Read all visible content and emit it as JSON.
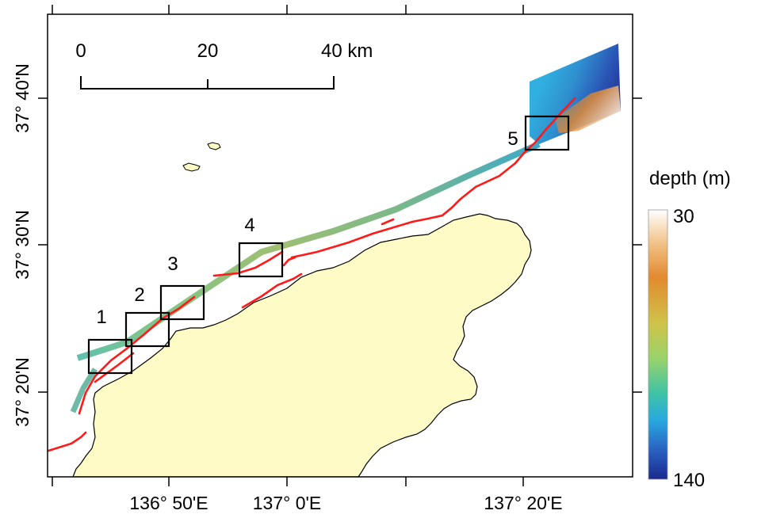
{
  "map": {
    "lat_labels": [
      {
        "text": "37° 40'N",
        "y": 40
      },
      {
        "text": "37° 30'N",
        "y": 30
      },
      {
        "text": "37° 20'N",
        "y": 20
      }
    ],
    "lon_labels": [
      {
        "text": "136° 50'E",
        "x": 50
      },
      {
        "text": "137° 0'E",
        "x": 0
      },
      {
        "text": "137° 20'E",
        "x": 20
      }
    ]
  },
  "scale_bar": {
    "ticks": [
      "0",
      "20",
      "40 km"
    ]
  },
  "legend": {
    "title": "depth (m)",
    "min_label": "30",
    "max_label": "140",
    "colors": [
      "#ffffff",
      "#f0b873",
      "#e28a2e",
      "#cfc34a",
      "#9ad36a",
      "#3fc3a5",
      "#28a9e0",
      "#2a5cc0",
      "#1a2a8c"
    ]
  },
  "study_boxes": [
    {
      "id": "1",
      "label": "1"
    },
    {
      "id": "2",
      "label": "2"
    },
    {
      "id": "3",
      "label": "3"
    },
    {
      "id": "4",
      "label": "4"
    },
    {
      "id": "5",
      "label": "5"
    }
  ],
  "colors": {
    "land": "#fffbc6",
    "fault": "#ff1a1a",
    "box": "#000000"
  }
}
